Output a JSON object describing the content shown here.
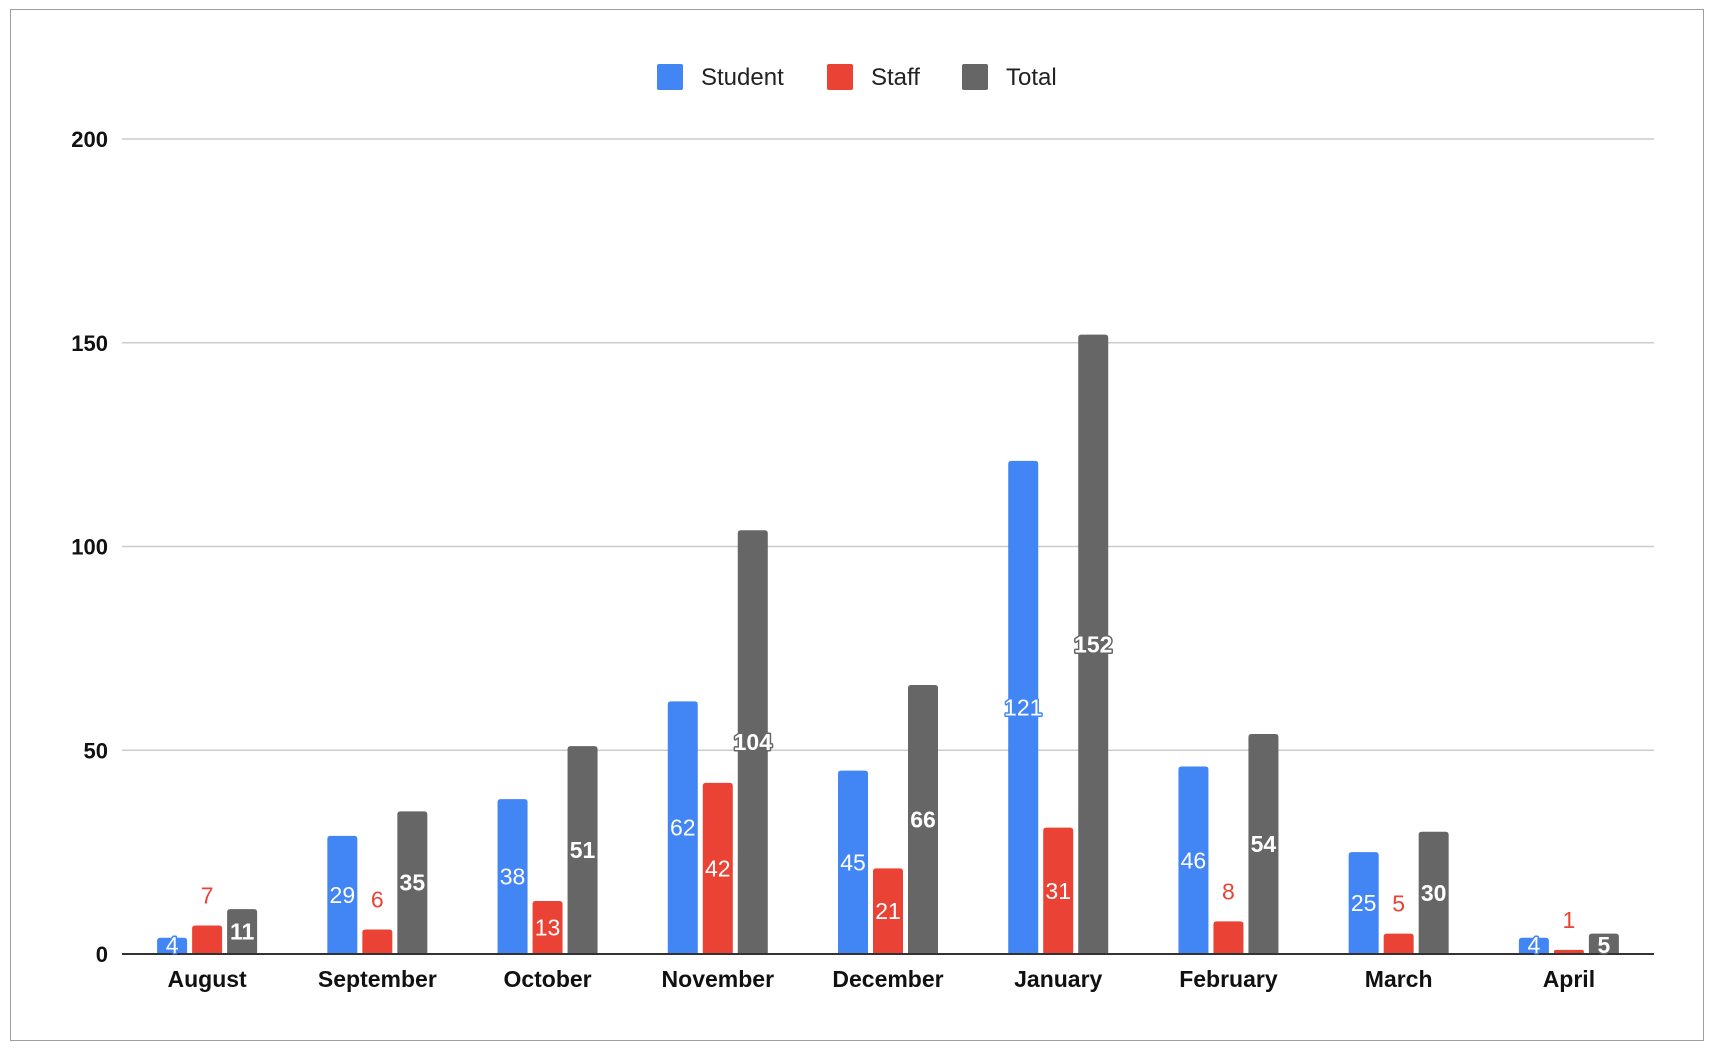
{
  "chart_data": {
    "type": "bar",
    "categories": [
      "August",
      "September",
      "October",
      "November",
      "December",
      "January",
      "February",
      "March",
      "April"
    ],
    "series": [
      {
        "name": "Student",
        "color": "#4285f4",
        "values": [
          4,
          29,
          38,
          62,
          45,
          121,
          46,
          25,
          4
        ]
      },
      {
        "name": "Staff",
        "color": "#ea4335",
        "values": [
          7,
          6,
          13,
          42,
          21,
          31,
          8,
          5,
          1
        ]
      },
      {
        "name": "Total",
        "color": "#666666",
        "values": [
          11,
          35,
          51,
          104,
          66,
          152,
          54,
          30,
          5
        ]
      }
    ],
    "yticks": [
      0,
      50,
      100,
      150,
      200
    ],
    "ylim": [
      0,
      200
    ],
    "grid": true,
    "legend": "top-center",
    "title": "",
    "xlabel": "",
    "ylabel": ""
  }
}
